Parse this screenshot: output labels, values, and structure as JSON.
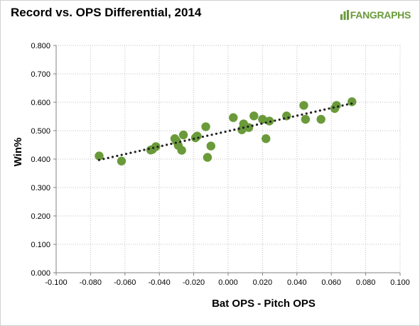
{
  "brand": {
    "logo_text": "FANGRAPHS",
    "logo_icon": "fangraphs-bars-icon"
  },
  "colors": {
    "point": "#6a9a3a",
    "trend": "#222222",
    "grid": "#bfbfbf"
  },
  "chart_data": {
    "type": "scatter",
    "title": "Record vs. OPS Differential, 2014",
    "xlabel": "Bat OPS - Pitch OPS",
    "ylabel": "Win%",
    "xlim": [
      -0.1,
      0.1
    ],
    "ylim": [
      0,
      0.8
    ],
    "xticks": [
      "-0.100",
      "-0.080",
      "-0.060",
      "-0.040",
      "-0.020",
      "0.000",
      "0.020",
      "0.040",
      "0.060",
      "0.080",
      "0.100"
    ],
    "yticks": [
      "0.000",
      "0.100",
      "0.200",
      "0.300",
      "0.400",
      "0.500",
      "0.600",
      "0.700",
      "0.800"
    ],
    "grid": true,
    "trendline": {
      "type": "linear",
      "style": "dotted",
      "x": [
        -0.075,
        0.072
      ],
      "y": [
        0.397,
        0.596
      ]
    },
    "points": [
      {
        "x": -0.075,
        "y": 0.411
      },
      {
        "x": -0.062,
        "y": 0.393
      },
      {
        "x": -0.045,
        "y": 0.432
      },
      {
        "x": -0.044,
        "y": 0.434
      },
      {
        "x": -0.042,
        "y": 0.444
      },
      {
        "x": -0.031,
        "y": 0.472
      },
      {
        "x": -0.03,
        "y": 0.463
      },
      {
        "x": -0.029,
        "y": 0.448
      },
      {
        "x": -0.027,
        "y": 0.431
      },
      {
        "x": -0.026,
        "y": 0.485
      },
      {
        "x": -0.019,
        "y": 0.475
      },
      {
        "x": -0.018,
        "y": 0.481
      },
      {
        "x": -0.013,
        "y": 0.514
      },
      {
        "x": -0.012,
        "y": 0.406
      },
      {
        "x": -0.01,
        "y": 0.446
      },
      {
        "x": 0.003,
        "y": 0.546
      },
      {
        "x": 0.008,
        "y": 0.503
      },
      {
        "x": 0.009,
        "y": 0.524
      },
      {
        "x": 0.012,
        "y": 0.511
      },
      {
        "x": 0.015,
        "y": 0.552
      },
      {
        "x": 0.02,
        "y": 0.54
      },
      {
        "x": 0.022,
        "y": 0.472
      },
      {
        "x": 0.024,
        "y": 0.534
      },
      {
        "x": 0.034,
        "y": 0.552
      },
      {
        "x": 0.044,
        "y": 0.589
      },
      {
        "x": 0.045,
        "y": 0.54
      },
      {
        "x": 0.054,
        "y": 0.54
      },
      {
        "x": 0.062,
        "y": 0.578
      },
      {
        "x": 0.063,
        "y": 0.589
      },
      {
        "x": 0.072,
        "y": 0.602
      }
    ]
  }
}
